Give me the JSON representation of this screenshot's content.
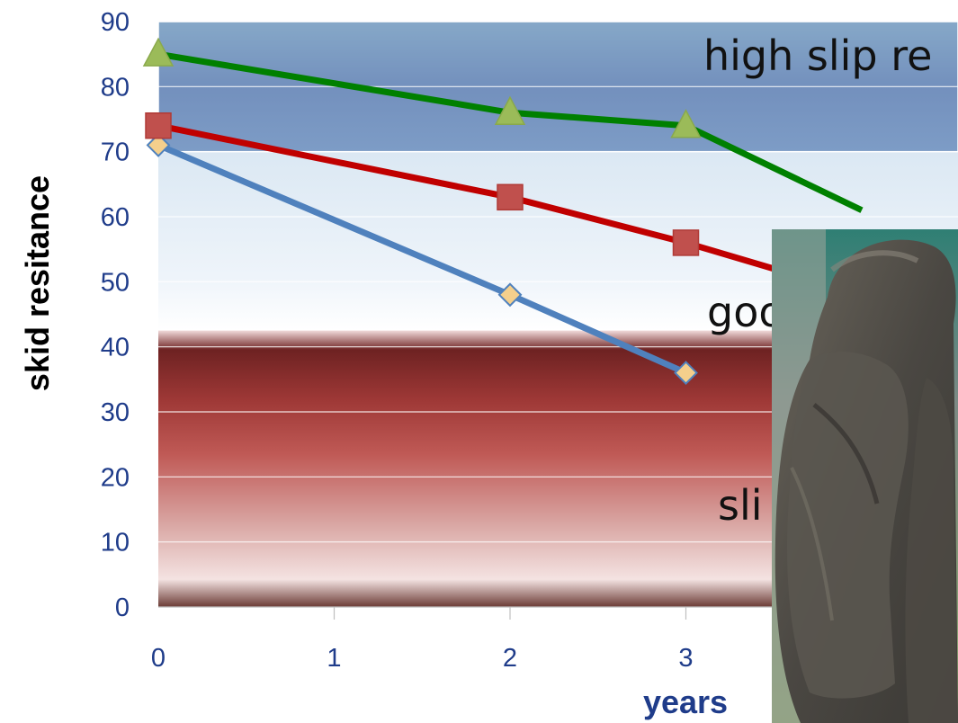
{
  "chart_data": {
    "type": "line",
    "title": "",
    "xlabel": "years",
    "ylabel": "skid resitance",
    "xlim": [
      0,
      4
    ],
    "ylim": [
      0,
      90
    ],
    "x_ticks": [
      "0",
      "1",
      "2",
      "3"
    ],
    "y_ticks": [
      "0",
      "10",
      "20",
      "30",
      "40",
      "50",
      "60",
      "70",
      "80",
      "90"
    ],
    "bands": [
      {
        "label": "high slip re",
        "from": 70,
        "to": 90,
        "color": "#7f9fc2"
      },
      {
        "label": "goo",
        "from": 40,
        "to": 70,
        "color": "#dde9f3"
      },
      {
        "label": "sli",
        "from": 0,
        "to": 40,
        "color": "#b94a45"
      }
    ],
    "series": [
      {
        "color": "#4f81bd",
        "marker": "diamond",
        "x": [
          0,
          2,
          3
        ],
        "y": [
          71,
          48,
          36
        ]
      },
      {
        "color": "#c00000",
        "marker": "square",
        "x": [
          0,
          2,
          3,
          3.5
        ],
        "y": [
          74,
          63,
          56,
          52
        ]
      },
      {
        "color": "#008000",
        "marker": "triangle",
        "x": [
          0,
          2,
          3,
          4
        ],
        "y": [
          85,
          76,
          74,
          61
        ]
      }
    ],
    "grid": true,
    "legend": "none"
  },
  "inset_photo": {
    "description_icon": "hoof-photo-icon"
  }
}
